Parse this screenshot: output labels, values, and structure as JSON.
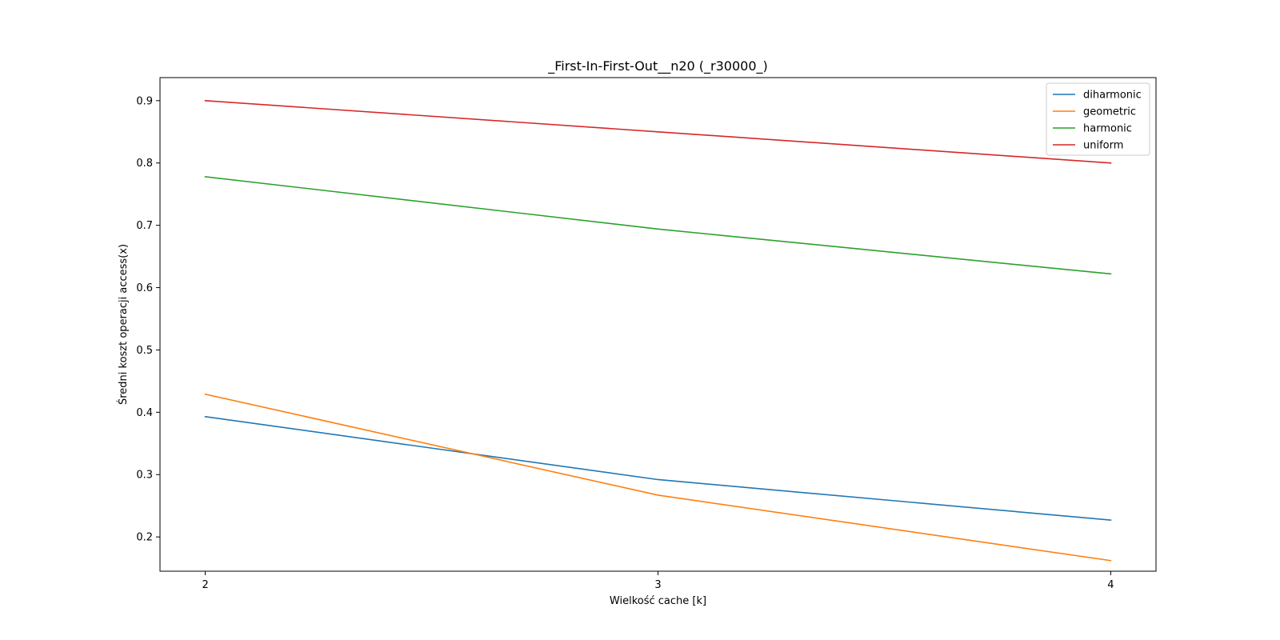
{
  "chart_data": {
    "type": "line",
    "title": "_First-In-First-Out__n20 (_r30000_)",
    "xlabel": "Wielkość cache [k]",
    "ylabel": "Średni koszt operacji access(x)",
    "x": [
      2,
      3,
      4
    ],
    "x_ticks": [
      "2",
      "3",
      "4"
    ],
    "xlim": [
      1.9,
      4.1
    ],
    "y_ticks": [
      "0.2",
      "0.3",
      "0.4",
      "0.5",
      "0.6",
      "0.7",
      "0.8",
      "0.9"
    ],
    "ylim": [
      0.145,
      0.937
    ],
    "grid": false,
    "legend_position": "top-right",
    "series": [
      {
        "name": "diharmonic",
        "color": "#1f77b4",
        "values": [
          0.393,
          0.292,
          0.227
        ]
      },
      {
        "name": "geometric",
        "color": "#ff7f0e",
        "values": [
          0.429,
          0.267,
          0.162
        ]
      },
      {
        "name": "harmonic",
        "color": "#2ca02c",
        "values": [
          0.778,
          0.694,
          0.622
        ]
      },
      {
        "name": "uniform",
        "color": "#d62728",
        "values": [
          0.9,
          0.85,
          0.8
        ]
      }
    ]
  }
}
